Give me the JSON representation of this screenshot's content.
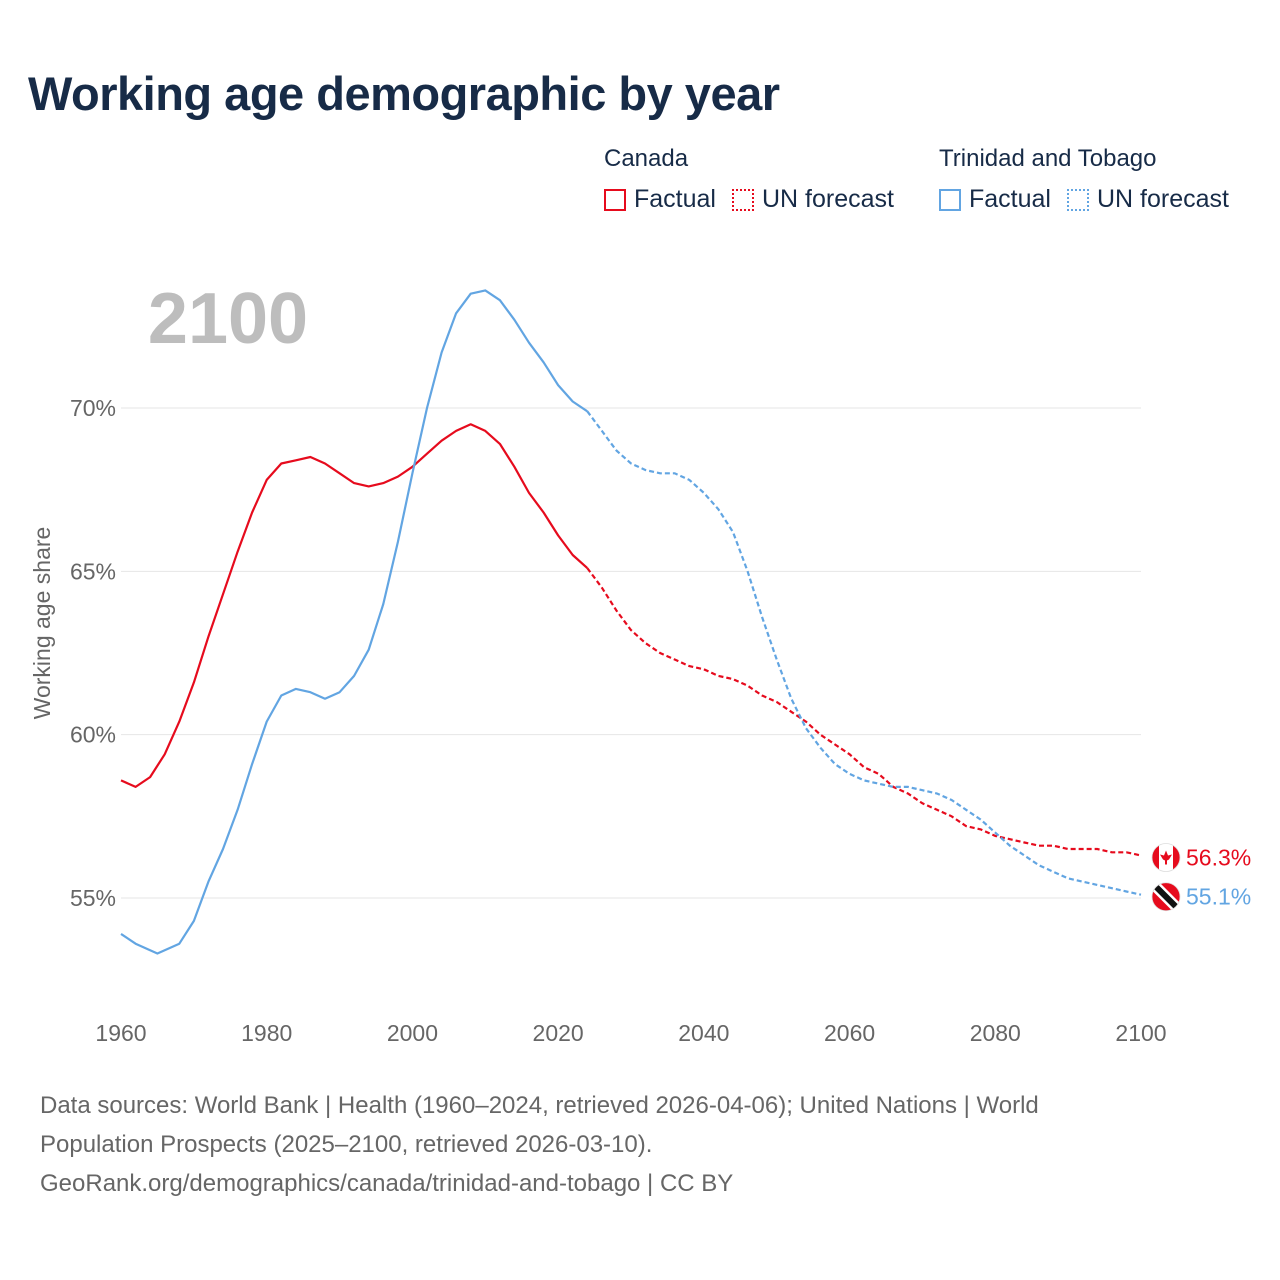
{
  "title": "Working age demographic by year",
  "legend": [
    {
      "group": "Canada",
      "items": [
        {
          "label": "Factual",
          "style": "solid"
        },
        {
          "label": "UN forecast",
          "style": "dotted"
        }
      ],
      "color": "#e60b1d"
    },
    {
      "group": "Trinidad and Tobago",
      "items": [
        {
          "label": "Factual",
          "style": "solid"
        },
        {
          "label": "UN forecast",
          "style": "dotted"
        }
      ],
      "color": "#62a5e2"
    }
  ],
  "footer": {
    "line1": "Data sources: World Bank | Health (1960–2024, retrieved 2026-04-06); United Nations | World",
    "line2": "Population Prospects (2025–2100, retrieved 2026-03-10).",
    "line3": "GeoRank.org/demographics/canada/trinidad-and-tobago | CC BY"
  },
  "chart_data": {
    "type": "line",
    "title": "Working age demographic by year",
    "year_label": "2100",
    "ylabel": "Working age share",
    "xlabel": "",
    "xlim": [
      1960,
      2100
    ],
    "ylim": [
      52.5,
      73.5
    ],
    "x_ticks": [
      1960,
      1980,
      2000,
      2020,
      2040,
      2060,
      2080,
      2100
    ],
    "y_ticks": [
      55,
      60,
      65,
      70
    ],
    "y_tick_labels": [
      "55%",
      "60%",
      "65%",
      "70%"
    ],
    "factual_end_year": 2024,
    "series": [
      {
        "name": "Canada",
        "color": "#e60b1d",
        "end_label": "56.3%",
        "flag": "canada",
        "points": [
          [
            1960,
            58.6
          ],
          [
            1962,
            58.4
          ],
          [
            1964,
            58.7
          ],
          [
            1966,
            59.4
          ],
          [
            1968,
            60.4
          ],
          [
            1970,
            61.6
          ],
          [
            1972,
            63.0
          ],
          [
            1974,
            64.3
          ],
          [
            1976,
            65.6
          ],
          [
            1978,
            66.8
          ],
          [
            1980,
            67.8
          ],
          [
            1982,
            68.3
          ],
          [
            1984,
            68.4
          ],
          [
            1986,
            68.5
          ],
          [
            1988,
            68.3
          ],
          [
            1990,
            68.0
          ],
          [
            1992,
            67.7
          ],
          [
            1994,
            67.6
          ],
          [
            1996,
            67.7
          ],
          [
            1998,
            67.9
          ],
          [
            2000,
            68.2
          ],
          [
            2002,
            68.6
          ],
          [
            2004,
            69.0
          ],
          [
            2006,
            69.3
          ],
          [
            2008,
            69.5
          ],
          [
            2010,
            69.3
          ],
          [
            2012,
            68.9
          ],
          [
            2014,
            68.2
          ],
          [
            2016,
            67.4
          ],
          [
            2018,
            66.8
          ],
          [
            2020,
            66.1
          ],
          [
            2022,
            65.5
          ],
          [
            2024,
            65.1
          ],
          [
            2026,
            64.5
          ],
          [
            2028,
            63.8
          ],
          [
            2030,
            63.2
          ],
          [
            2032,
            62.8
          ],
          [
            2034,
            62.5
          ],
          [
            2036,
            62.3
          ],
          [
            2038,
            62.1
          ],
          [
            2040,
            62.0
          ],
          [
            2042,
            61.8
          ],
          [
            2044,
            61.7
          ],
          [
            2046,
            61.5
          ],
          [
            2048,
            61.2
          ],
          [
            2050,
            61.0
          ],
          [
            2052,
            60.7
          ],
          [
            2054,
            60.4
          ],
          [
            2056,
            60.0
          ],
          [
            2058,
            59.7
          ],
          [
            2060,
            59.4
          ],
          [
            2062,
            59.0
          ],
          [
            2064,
            58.8
          ],
          [
            2066,
            58.4
          ],
          [
            2068,
            58.2
          ],
          [
            2070,
            57.9
          ],
          [
            2072,
            57.7
          ],
          [
            2074,
            57.5
          ],
          [
            2076,
            57.2
          ],
          [
            2078,
            57.1
          ],
          [
            2080,
            56.9
          ],
          [
            2082,
            56.8
          ],
          [
            2084,
            56.7
          ],
          [
            2086,
            56.6
          ],
          [
            2088,
            56.6
          ],
          [
            2090,
            56.5
          ],
          [
            2092,
            56.5
          ],
          [
            2094,
            56.5
          ],
          [
            2096,
            56.4
          ],
          [
            2098,
            56.4
          ],
          [
            2100,
            56.3
          ]
        ]
      },
      {
        "name": "Trinidad and Tobago",
        "color": "#62a5e2",
        "end_label": "55.1%",
        "flag": "trinidad-and-tobago",
        "points": [
          [
            1960,
            53.9
          ],
          [
            1962,
            53.6
          ],
          [
            1964,
            53.4
          ],
          [
            1965,
            53.3
          ],
          [
            1966,
            53.4
          ],
          [
            1968,
            53.6
          ],
          [
            1970,
            54.3
          ],
          [
            1972,
            55.5
          ],
          [
            1974,
            56.5
          ],
          [
            1976,
            57.7
          ],
          [
            1978,
            59.1
          ],
          [
            1980,
            60.4
          ],
          [
            1982,
            61.2
          ],
          [
            1984,
            61.4
          ],
          [
            1986,
            61.3
          ],
          [
            1988,
            61.1
          ],
          [
            1990,
            61.3
          ],
          [
            1992,
            61.8
          ],
          [
            1994,
            62.6
          ],
          [
            1996,
            64.0
          ],
          [
            1998,
            65.9
          ],
          [
            2000,
            68.0
          ],
          [
            2002,
            70.0
          ],
          [
            2004,
            71.7
          ],
          [
            2006,
            72.9
          ],
          [
            2008,
            73.5
          ],
          [
            2010,
            73.6
          ],
          [
            2012,
            73.3
          ],
          [
            2014,
            72.7
          ],
          [
            2016,
            72.0
          ],
          [
            2018,
            71.4
          ],
          [
            2020,
            70.7
          ],
          [
            2022,
            70.2
          ],
          [
            2024,
            69.9
          ],
          [
            2026,
            69.3
          ],
          [
            2028,
            68.7
          ],
          [
            2030,
            68.3
          ],
          [
            2032,
            68.1
          ],
          [
            2034,
            68.0
          ],
          [
            2036,
            68.0
          ],
          [
            2038,
            67.8
          ],
          [
            2040,
            67.4
          ],
          [
            2042,
            66.9
          ],
          [
            2044,
            66.2
          ],
          [
            2046,
            65.0
          ],
          [
            2048,
            63.6
          ],
          [
            2050,
            62.3
          ],
          [
            2052,
            61.1
          ],
          [
            2054,
            60.2
          ],
          [
            2056,
            59.6
          ],
          [
            2058,
            59.1
          ],
          [
            2060,
            58.8
          ],
          [
            2062,
            58.6
          ],
          [
            2064,
            58.5
          ],
          [
            2066,
            58.4
          ],
          [
            2068,
            58.4
          ],
          [
            2070,
            58.3
          ],
          [
            2072,
            58.2
          ],
          [
            2074,
            58.0
          ],
          [
            2076,
            57.7
          ],
          [
            2078,
            57.4
          ],
          [
            2080,
            57.0
          ],
          [
            2082,
            56.6
          ],
          [
            2084,
            56.3
          ],
          [
            2086,
            56.0
          ],
          [
            2088,
            55.8
          ],
          [
            2090,
            55.6
          ],
          [
            2092,
            55.5
          ],
          [
            2094,
            55.4
          ],
          [
            2096,
            55.3
          ],
          [
            2098,
            55.2
          ],
          [
            2100,
            55.1
          ]
        ]
      }
    ]
  }
}
